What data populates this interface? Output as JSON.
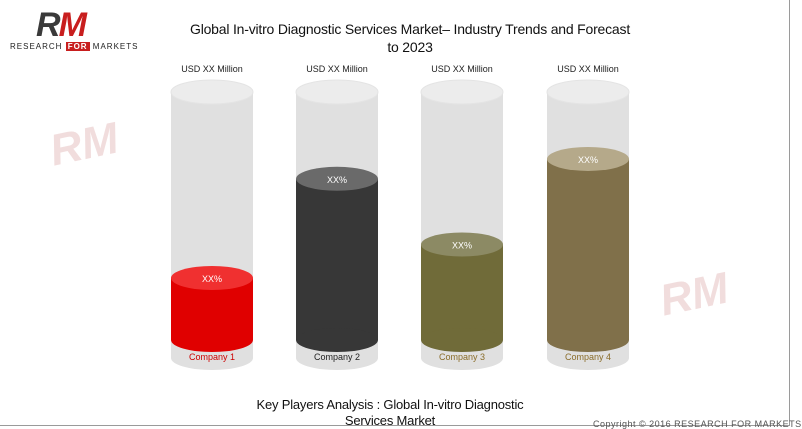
{
  "logo": {
    "mark_r": "R",
    "mark_m": "M",
    "tagline_before": "RESEARCH ",
    "tagline_for": "FOR",
    "tagline_after": " MARKETS"
  },
  "watermark": {
    "mark": "RM"
  },
  "footer": {
    "copyright": "Copyright © 2016 RESEARCH FOR MARKETS"
  },
  "colors": {
    "track": "#e0e0e0",
    "track_top": "#ececec"
  },
  "chart_data": {
    "type": "bar",
    "title": "Global In-vitro Diagnostic Services Market– Industry Trends and Forecast to 2023",
    "caption": "Key Players Analysis : Global In-vitro Diagnostic Services Market",
    "categories": [
      "Company  1",
      "Company  2",
      "Company  3",
      "Company  4"
    ],
    "top_labels": [
      "USD XX Million",
      "USD XX Million",
      "USD XX Million",
      "USD XX Million"
    ],
    "value_labels": [
      "XX%",
      "XX%",
      "XX%",
      "XX%"
    ],
    "values": [
      0.25,
      0.65,
      0.385,
      0.73
    ],
    "ylim": [
      0,
      1
    ],
    "colors": [
      "#e00000",
      "#373737",
      "#706b39",
      "#80704a"
    ],
    "top_colors": [
      "#f03030",
      "#6a6a6a",
      "#8c8a64",
      "#b5a98a"
    ],
    "label_colors": [
      "#cc0000",
      "#222222",
      "#8a6d2a",
      "#8a6d2a"
    ],
    "value_label_colors": [
      "#ffffff",
      "#ffffff",
      "#ffffff",
      "#ffffff"
    ]
  }
}
